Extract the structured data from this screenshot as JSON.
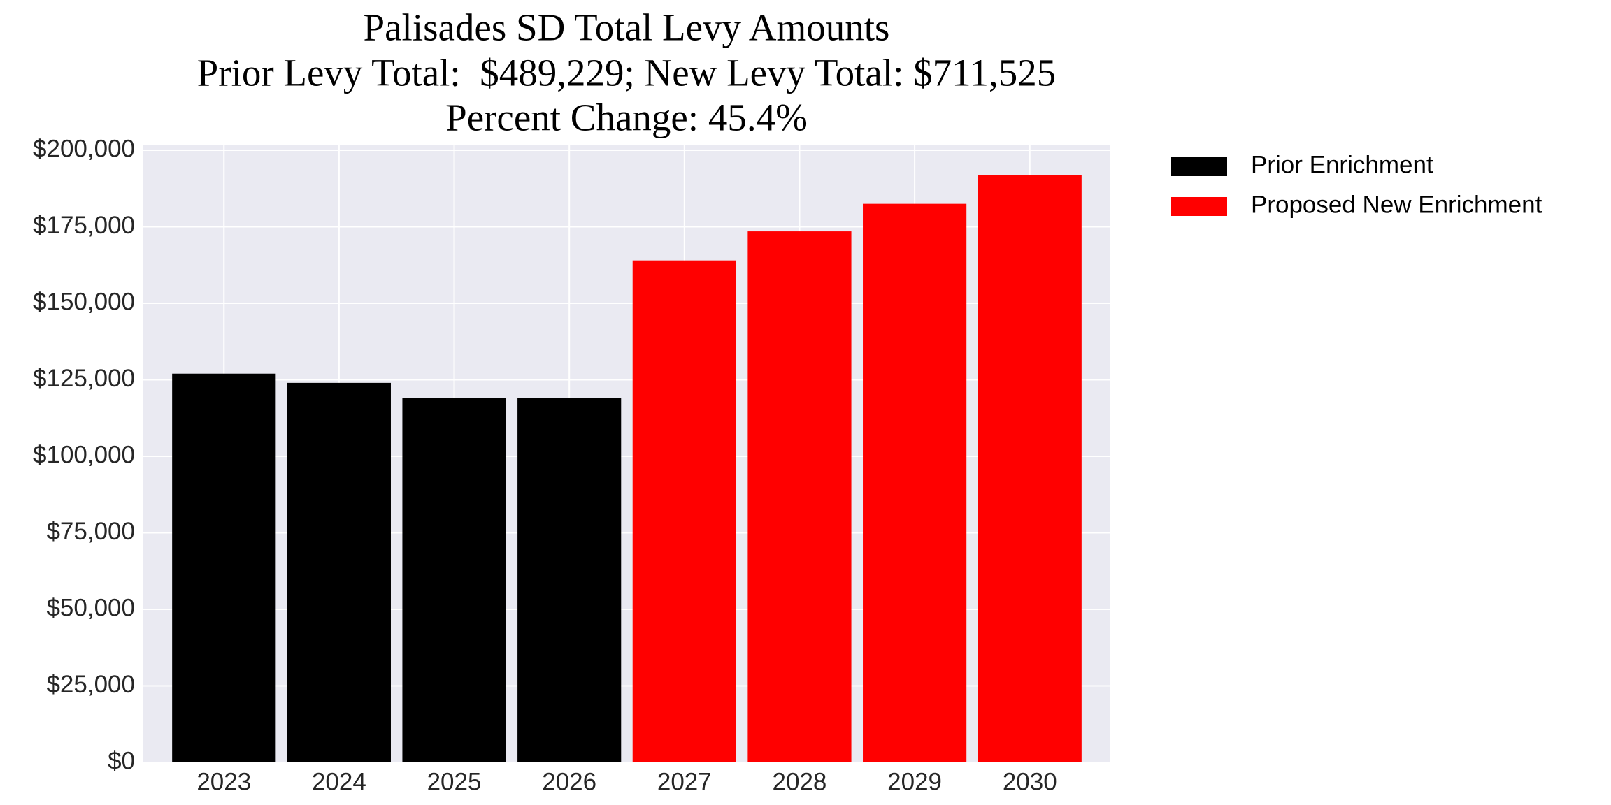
{
  "chart_data": {
    "type": "bar",
    "title": "Palisades SD Total Levy Amounts",
    "subtitle": [
      "Prior Levy Total:  $489,229; New Levy Total: $711,525",
      "Percent Change: 45.4%"
    ],
    "categories": [
      "2023",
      "2024",
      "2025",
      "2026",
      "2027",
      "2028",
      "2029",
      "2030"
    ],
    "series": [
      {
        "name": "Prior Enrichment",
        "color": "#000000",
        "values": [
          127000,
          124000,
          119000,
          119000,
          null,
          null,
          null,
          null
        ]
      },
      {
        "name": "Proposed New Enrichment",
        "color": "#ff0000",
        "values": [
          null,
          null,
          null,
          null,
          164000,
          173500,
          182500,
          192000
        ]
      }
    ],
    "ylim": [
      0,
      200000
    ],
    "yticks": [
      {
        "value": 0,
        "label": "$0"
      },
      {
        "value": 25000,
        "label": "$25,000"
      },
      {
        "value": 50000,
        "label": "$50,000"
      },
      {
        "value": 75000,
        "label": "$75,000"
      },
      {
        "value": 100000,
        "label": "$100,000"
      },
      {
        "value": 125000,
        "label": "$125,000"
      },
      {
        "value": 150000,
        "label": "$150,000"
      },
      {
        "value": 175000,
        "label": "$175,000"
      },
      {
        "value": 200000,
        "label": "$200,000"
      }
    ],
    "grid": true,
    "legend": "outside-right"
  }
}
